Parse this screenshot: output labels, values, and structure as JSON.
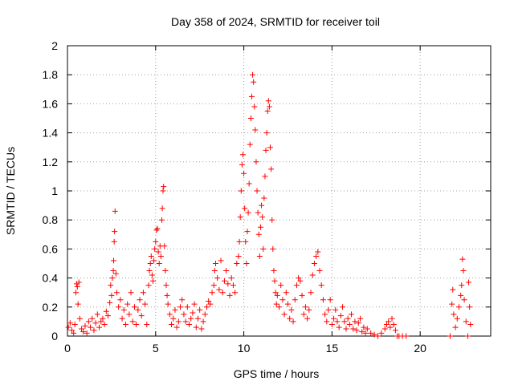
{
  "chart_data": {
    "type": "scatter",
    "title": "Day 358 of 2024, SRMTID for receiver toil",
    "xlabel": "GPS time / hours",
    "ylabel": "SRMTID / TECUs",
    "xlim": [
      0,
      24
    ],
    "ylim": [
      0,
      2
    ],
    "xticks": [
      0,
      5,
      10,
      15,
      20
    ],
    "xtick_labels": [
      "0",
      "5",
      "10",
      "15",
      "20"
    ],
    "yticks": [
      0,
      0.2,
      0.4,
      0.6,
      0.8,
      1,
      1.2,
      1.4,
      1.6,
      1.8,
      2
    ],
    "ytick_labels": [
      "0",
      "0.2",
      "0.4",
      "0.6",
      "0.8",
      "1",
      "1.2",
      "1.4",
      "1.6",
      "1.8",
      "2"
    ],
    "grid": true,
    "marker": "+",
    "color": "#ff0000",
    "series": [
      {
        "points": [
          [
            0.05,
            0.06
          ],
          [
            0.15,
            0.09
          ],
          [
            0.25,
            0.04
          ],
          [
            0.35,
            0.02
          ],
          [
            0.42,
            0.08
          ],
          [
            0.48,
            0.3
          ],
          [
            0.52,
            0.36
          ],
          [
            0.56,
            0.34
          ],
          [
            0.6,
            0.22
          ],
          [
            0.65,
            0.37
          ],
          [
            0.7,
            0.12
          ],
          [
            0.8,
            0.05
          ],
          [
            0.9,
            0.03
          ],
          [
            1.0,
            0.07
          ],
          [
            1.1,
            0.02
          ],
          [
            1.2,
            0.1
          ],
          [
            1.3,
            0.06
          ],
          [
            1.4,
            0.12
          ],
          [
            1.5,
            0.04
          ],
          [
            1.6,
            0.09
          ],
          [
            1.7,
            0.15
          ],
          [
            1.8,
            0.06
          ],
          [
            1.9,
            0.1
          ],
          [
            2.0,
            0.12
          ],
          [
            2.1,
            0.08
          ],
          [
            2.2,
            0.17
          ],
          [
            2.3,
            0.14
          ],
          [
            2.4,
            0.23
          ],
          [
            2.45,
            0.35
          ],
          [
            2.5,
            0.28
          ],
          [
            2.55,
            0.4
          ],
          [
            2.6,
            0.45
          ],
          [
            2.62,
            0.52
          ],
          [
            2.65,
            0.65
          ],
          [
            2.67,
            0.72
          ],
          [
            2.7,
            0.86
          ],
          [
            2.75,
            0.43
          ],
          [
            2.8,
            0.3
          ],
          [
            2.9,
            0.2
          ],
          [
            3.0,
            0.25
          ],
          [
            3.1,
            0.12
          ],
          [
            3.2,
            0.18
          ],
          [
            3.3,
            0.08
          ],
          [
            3.4,
            0.22
          ],
          [
            3.5,
            0.15
          ],
          [
            3.6,
            0.3
          ],
          [
            3.7,
            0.1
          ],
          [
            3.8,
            0.2
          ],
          [
            3.9,
            0.08
          ],
          [
            4.0,
            0.18
          ],
          [
            4.1,
            0.25
          ],
          [
            4.2,
            0.14
          ],
          [
            4.3,
            0.3
          ],
          [
            4.4,
            0.22
          ],
          [
            4.5,
            0.08
          ],
          [
            4.6,
            0.35
          ],
          [
            4.65,
            0.45
          ],
          [
            4.7,
            0.5
          ],
          [
            4.75,
            0.55
          ],
          [
            4.8,
            0.42
          ],
          [
            4.85,
            0.38
          ],
          [
            4.9,
            0.52
          ],
          [
            4.95,
            0.6
          ],
          [
            5.0,
            0.65
          ],
          [
            5.05,
            0.73
          ],
          [
            5.1,
            0.74
          ],
          [
            5.15,
            0.58
          ],
          [
            5.2,
            0.5
          ],
          [
            5.25,
            0.62
          ],
          [
            5.3,
            0.55
          ],
          [
            5.35,
            0.8
          ],
          [
            5.38,
            0.88
          ],
          [
            5.42,
            1.0
          ],
          [
            5.45,
            1.03
          ],
          [
            5.5,
            0.62
          ],
          [
            5.55,
            0.45
          ],
          [
            5.6,
            0.35
          ],
          [
            5.65,
            0.28
          ],
          [
            5.7,
            0.22
          ],
          [
            5.8,
            0.15
          ],
          [
            5.9,
            0.08
          ],
          [
            6.0,
            0.12
          ],
          [
            6.1,
            0.18
          ],
          [
            6.2,
            0.06
          ],
          [
            6.3,
            0.1
          ],
          [
            6.4,
            0.2
          ],
          [
            6.5,
            0.25
          ],
          [
            6.6,
            0.15
          ],
          [
            6.7,
            0.1
          ],
          [
            6.8,
            0.2
          ],
          [
            6.9,
            0.08
          ],
          [
            7.0,
            0.12
          ],
          [
            7.1,
            0.16
          ],
          [
            7.2,
            0.22
          ],
          [
            7.3,
            0.06
          ],
          [
            7.4,
            0.12
          ],
          [
            7.5,
            0.18
          ],
          [
            7.6,
            0.05
          ],
          [
            7.7,
            0.1
          ],
          [
            7.8,
            0.15
          ],
          [
            7.9,
            0.2
          ],
          [
            8.0,
            0.24
          ],
          [
            8.1,
            0.22
          ],
          [
            8.2,
            0.3
          ],
          [
            8.3,
            0.35
          ],
          [
            8.35,
            0.45
          ],
          [
            8.4,
            0.5
          ],
          [
            8.5,
            0.4
          ],
          [
            8.6,
            0.32
          ],
          [
            8.7,
            0.52
          ],
          [
            8.8,
            0.3
          ],
          [
            8.9,
            0.38
          ],
          [
            9.0,
            0.45
          ],
          [
            9.1,
            0.36
          ],
          [
            9.2,
            0.28
          ],
          [
            9.3,
            0.4
          ],
          [
            9.4,
            0.35
          ],
          [
            9.5,
            0.3
          ],
          [
            9.6,
            0.5
          ],
          [
            9.7,
            0.55
          ],
          [
            9.75,
            0.65
          ],
          [
            9.8,
            0.82
          ],
          [
            9.85,
            1.0
          ],
          [
            9.9,
            1.18
          ],
          [
            9.95,
            1.25
          ],
          [
            10.0,
            1.12
          ],
          [
            10.05,
            0.88
          ],
          [
            10.1,
            0.65
          ],
          [
            10.15,
            0.5
          ],
          [
            10.2,
            0.72
          ],
          [
            10.25,
            0.85
          ],
          [
            10.3,
            1.05
          ],
          [
            10.35,
            1.32
          ],
          [
            10.4,
            1.5
          ],
          [
            10.45,
            1.65
          ],
          [
            10.5,
            1.8
          ],
          [
            10.55,
            1.75
          ],
          [
            10.6,
            1.58
          ],
          [
            10.65,
            1.42
          ],
          [
            10.7,
            1.2
          ],
          [
            10.75,
            1.0
          ],
          [
            10.8,
            0.85
          ],
          [
            10.85,
            0.7
          ],
          [
            10.9,
            0.55
          ],
          [
            10.95,
            0.75
          ],
          [
            11.0,
            0.9
          ],
          [
            11.05,
            0.82
          ],
          [
            11.1,
            0.6
          ],
          [
            11.15,
            0.95
          ],
          [
            11.2,
            1.1
          ],
          [
            11.25,
            1.28
          ],
          [
            11.3,
            1.4
          ],
          [
            11.35,
            1.55
          ],
          [
            11.4,
            1.62
          ],
          [
            11.45,
            1.58
          ],
          [
            11.5,
            1.3
          ],
          [
            11.55,
            1.15
          ],
          [
            11.6,
            0.8
          ],
          [
            11.65,
            0.6
          ],
          [
            11.7,
            0.45
          ],
          [
            11.75,
            0.38
          ],
          [
            11.8,
            0.3
          ],
          [
            11.85,
            0.22
          ],
          [
            11.9,
            0.28
          ],
          [
            12.0,
            0.2
          ],
          [
            12.1,
            0.35
          ],
          [
            12.2,
            0.25
          ],
          [
            12.3,
            0.15
          ],
          [
            12.4,
            0.3
          ],
          [
            12.5,
            0.22
          ],
          [
            12.6,
            0.12
          ],
          [
            12.7,
            0.18
          ],
          [
            12.8,
            0.1
          ],
          [
            12.9,
            0.25
          ],
          [
            13.0,
            0.35
          ],
          [
            13.1,
            0.4
          ],
          [
            13.2,
            0.38
          ],
          [
            13.3,
            0.28
          ],
          [
            13.4,
            0.15
          ],
          [
            13.5,
            0.2
          ],
          [
            13.6,
            0.12
          ],
          [
            13.7,
            0.18
          ],
          [
            13.8,
            0.3
          ],
          [
            13.9,
            0.42
          ],
          [
            14.0,
            0.5
          ],
          [
            14.1,
            0.55
          ],
          [
            14.2,
            0.58
          ],
          [
            14.3,
            0.45
          ],
          [
            14.4,
            0.35
          ],
          [
            14.5,
            0.25
          ],
          [
            14.6,
            0.15
          ],
          [
            14.7,
            0.1
          ],
          [
            14.8,
            0.18
          ],
          [
            14.9,
            0.25
          ],
          [
            15.0,
            0.08
          ],
          [
            15.1,
            0.12
          ],
          [
            15.2,
            0.18
          ],
          [
            15.3,
            0.1
          ],
          [
            15.4,
            0.06
          ],
          [
            15.5,
            0.14
          ],
          [
            15.6,
            0.2
          ],
          [
            15.7,
            0.1
          ],
          [
            15.8,
            0.05
          ],
          [
            15.9,
            0.12
          ],
          [
            16.0,
            0.08
          ],
          [
            16.1,
            0.15
          ],
          [
            16.2,
            0.05
          ],
          [
            16.3,
            0.1
          ],
          [
            16.4,
            0.04
          ],
          [
            16.5,
            0.09
          ],
          [
            16.6,
            0.12
          ],
          [
            16.7,
            0.03
          ],
          [
            16.8,
            0.06
          ],
          [
            16.9,
            0.02
          ],
          [
            17.0,
            0.05
          ],
          [
            17.2,
            0.02
          ],
          [
            17.4,
            0.01
          ],
          [
            17.6,
            0.0
          ],
          [
            17.8,
            0.02
          ],
          [
            18.0,
            0.05
          ],
          [
            18.1,
            0.08
          ],
          [
            18.2,
            0.1
          ],
          [
            18.3,
            0.06
          ],
          [
            18.4,
            0.12
          ],
          [
            18.5,
            0.08
          ],
          [
            18.6,
            0.04
          ],
          [
            18.7,
            0.0
          ],
          [
            18.8,
            0.0
          ],
          [
            19.0,
            0.0
          ],
          [
            19.2,
            0.0
          ],
          [
            21.7,
            0.0
          ],
          [
            21.8,
            0.22
          ],
          [
            21.85,
            0.32
          ],
          [
            21.9,
            0.15
          ],
          [
            22.0,
            0.06
          ],
          [
            22.1,
            0.12
          ],
          [
            22.2,
            0.2
          ],
          [
            22.3,
            0.28
          ],
          [
            22.35,
            0.35
          ],
          [
            22.4,
            0.53
          ],
          [
            22.45,
            0.45
          ],
          [
            22.5,
            0.25
          ],
          [
            22.6,
            0.1
          ],
          [
            22.7,
            0.0
          ],
          [
            22.75,
            0.37
          ],
          [
            22.8,
            0.2
          ],
          [
            22.85,
            0.08
          ]
        ]
      }
    ]
  }
}
